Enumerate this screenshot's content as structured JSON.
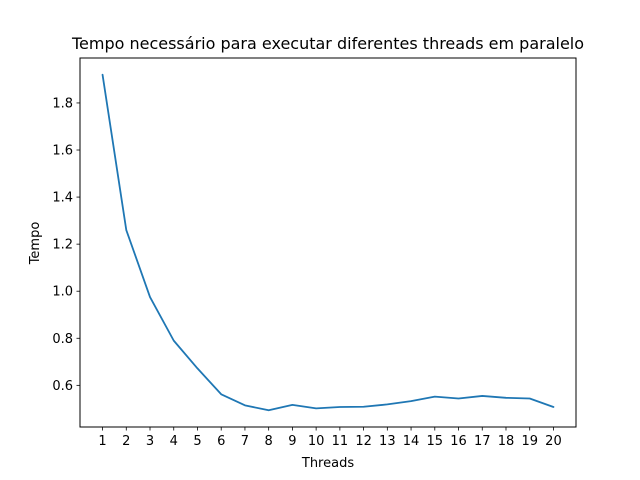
{
  "chart_data": {
    "type": "line",
    "title": "Tempo necessário para executar diferentes threads em paralelo",
    "xlabel": "Threads",
    "ylabel": "Tempo",
    "x": [
      1,
      2,
      3,
      4,
      5,
      6,
      7,
      8,
      9,
      10,
      11,
      12,
      13,
      14,
      15,
      16,
      17,
      18,
      19,
      20
    ],
    "series": [
      {
        "values": [
          1.92,
          1.26,
          0.975,
          0.79,
          0.672,
          0.562,
          0.515,
          0.494,
          0.517,
          0.502,
          0.508,
          0.509,
          0.519,
          0.533,
          0.552,
          0.544,
          0.555,
          0.547,
          0.544,
          0.508
        ],
        "color": "#1f77b4"
      }
    ],
    "xticks": [
      "1",
      "2",
      "3",
      "4",
      "5",
      "6",
      "7",
      "8",
      "9",
      "10",
      "11",
      "12",
      "13",
      "14",
      "15",
      "16",
      "17",
      "18",
      "19",
      "20"
    ],
    "yticks": [
      "0.6",
      "0.8",
      "1.0",
      "1.2",
      "1.4",
      "1.6",
      "1.8"
    ],
    "xlim": [
      0.05,
      20.95
    ],
    "ylim": [
      0.423,
      1.991
    ],
    "grid": false
  }
}
